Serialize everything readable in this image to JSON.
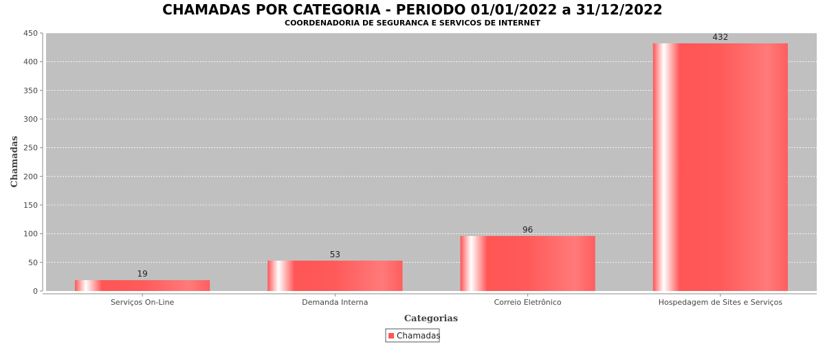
{
  "chart_data": {
    "type": "bar",
    "title": "CHAMADAS POR CATEGORIA - PERIODO 01/01/2022 a 31/12/2022",
    "subtitle": "COORDENADORIA DE SEGURANCA E SERVICOS DE INTERNET",
    "xlabel": "Categorias",
    "ylabel": "Chamadas",
    "categories": [
      "Serviços On-Line",
      "Demanda Interna",
      "Correio Eletrônico",
      "Hospedagem de Sites e Serviços"
    ],
    "series": [
      {
        "name": "Chamadas",
        "values": [
          19,
          53,
          96,
          432
        ]
      }
    ],
    "ylim": [
      0,
      450
    ],
    "yticks": [
      0,
      50,
      100,
      150,
      200,
      250,
      300,
      350,
      400,
      450
    ],
    "grid": true,
    "legend_position": "bottom",
    "colors": {
      "bar": "#ff5555",
      "bar_light": "#ff7777",
      "plot_background": "#c0c0c0",
      "gridline": "#ffffff"
    }
  }
}
